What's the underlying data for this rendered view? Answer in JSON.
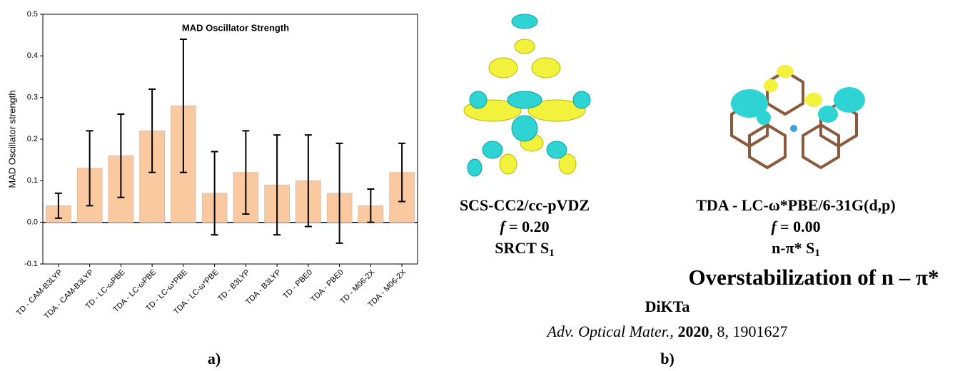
{
  "chart_data": {
    "type": "bar",
    "title": "MAD Oscillator Strength",
    "y_label": "MAD Oscillator strength",
    "categories": [
      "TD - CAM-B3LYP",
      "TDA - CAM-B3LYP",
      "TD - LC-ωPBE",
      "TDA - LC-ωPBE",
      "TD - LC-ω*PBE",
      "TDA - LC-ω*PBE",
      "TD - B3LYP",
      "TDA - B3LYP",
      "TD - PBE0",
      "TDA - PBE0",
      "TD - M06-2X",
      "TDA - M06-2X"
    ],
    "values": [
      0.04,
      0.13,
      0.16,
      0.22,
      0.28,
      0.07,
      0.12,
      0.09,
      0.1,
      0.07,
      0.04,
      0.12
    ],
    "errors": [
      0.03,
      0.09,
      0.1,
      0.1,
      0.16,
      0.1,
      0.1,
      0.12,
      0.11,
      0.12,
      0.04,
      0.07
    ],
    "color": "#fbc9a0",
    "ylim": [
      -0.1,
      0.5
    ],
    "yticks": [
      -0.1,
      {
        "value": 0,
        "label": "0.0"
      },
      0.1,
      0.2,
      0.3,
      0.4,
      0.5
    ]
  },
  "panel_a_label": "a)",
  "panel_b": {
    "label": "b)",
    "left": {
      "method": "SCS-CC2/cc-pVDZ",
      "f_var": "f",
      "f_text": " = 0.20",
      "state": {
        "text": "SRCT S",
        "sub": "1"
      }
    },
    "right": {
      "method": "TDA - LC-ω*PBE/6-31G(d,p)",
      "f_var": "f",
      "f_text": " = 0.00",
      "state": {
        "text": "n-π* S",
        "sub": "1"
      }
    },
    "headline": "Overstabilization of n – π*",
    "molecule": "DiKTa",
    "citation": {
      "journal": "Adv. Optical Mater.,",
      "year": "2020",
      "rest": ", 8, 1901627"
    }
  }
}
